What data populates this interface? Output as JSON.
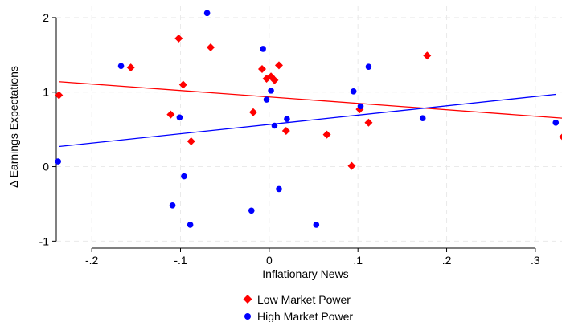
{
  "chart_data": {
    "type": "scatter",
    "title": "",
    "xlabel": "Inflationary News",
    "ylabel": "Δ Earnings Expectations",
    "xlim": [
      -0.24,
      0.33
    ],
    "ylim": [
      -1.05,
      2.15
    ],
    "x_ticks": [
      -0.2,
      -0.1,
      0,
      0.1,
      0.2,
      0.3
    ],
    "x_tick_labels": [
      "-.2",
      "-.1",
      "0",
      ".1",
      ".2",
      ".3"
    ],
    "y_ticks": [
      -1,
      0,
      1,
      2
    ],
    "y_tick_labels": [
      "-1",
      "0",
      "1",
      "2"
    ],
    "grid": true,
    "legend_position": "bottom-center",
    "series": [
      {
        "name": "Low Market Power",
        "color": "#ff0000",
        "marker": "diamond",
        "points": [
          {
            "x": -0.237,
            "y": 0.96
          },
          {
            "x": -0.156,
            "y": 1.33
          },
          {
            "x": -0.102,
            "y": 1.72
          },
          {
            "x": -0.097,
            "y": 1.1
          },
          {
            "x": -0.111,
            "y": 0.7
          },
          {
            "x": -0.088,
            "y": 0.34
          },
          {
            "x": -0.066,
            "y": 1.6
          },
          {
            "x": -0.018,
            "y": 0.73
          },
          {
            "x": -0.008,
            "y": 1.31
          },
          {
            "x": -0.003,
            "y": 1.18
          },
          {
            "x": 0.002,
            "y": 1.21
          },
          {
            "x": 0.006,
            "y": 1.16
          },
          {
            "x": 0.011,
            "y": 1.36
          },
          {
            "x": 0.019,
            "y": 0.48
          },
          {
            "x": 0.065,
            "y": 0.43
          },
          {
            "x": 0.093,
            "y": 0.01
          },
          {
            "x": 0.102,
            "y": 0.77
          },
          {
            "x": 0.112,
            "y": 0.59
          },
          {
            "x": 0.178,
            "y": 1.49
          },
          {
            "x": 0.331,
            "y": 0.4
          }
        ],
        "fit_line": {
          "x": [
            -0.237,
            0.331
          ],
          "y": [
            1.14,
            0.65
          ]
        }
      },
      {
        "name": "High Market Power",
        "color": "#0000ff",
        "marker": "circle",
        "points": [
          {
            "x": -0.238,
            "y": 0.07
          },
          {
            "x": -0.167,
            "y": 1.35
          },
          {
            "x": -0.109,
            "y": -0.52
          },
          {
            "x": -0.101,
            "y": 0.66
          },
          {
            "x": -0.096,
            "y": -0.13
          },
          {
            "x": -0.089,
            "y": -0.78
          },
          {
            "x": -0.07,
            "y": 2.06
          },
          {
            "x": -0.02,
            "y": -0.59
          },
          {
            "x": -0.007,
            "y": 1.58
          },
          {
            "x": -0.003,
            "y": 0.9
          },
          {
            "x": 0.002,
            "y": 1.02
          },
          {
            "x": 0.006,
            "y": 0.55
          },
          {
            "x": 0.011,
            "y": -0.3
          },
          {
            "x": 0.02,
            "y": 0.64
          },
          {
            "x": 0.053,
            "y": -0.78
          },
          {
            "x": 0.095,
            "y": 1.01
          },
          {
            "x": 0.103,
            "y": 0.81
          },
          {
            "x": 0.112,
            "y": 1.34
          },
          {
            "x": 0.173,
            "y": 0.65
          },
          {
            "x": 0.323,
            "y": 0.59
          }
        ],
        "fit_line": {
          "x": [
            -0.237,
            0.323
          ],
          "y": [
            0.27,
            0.97
          ]
        }
      }
    ]
  },
  "legend": {
    "items": [
      {
        "label": "Low Market Power",
        "color": "#ff0000",
        "marker": "diamond"
      },
      {
        "label": "High Market Power",
        "color": "#0000ff",
        "marker": "circle"
      }
    ]
  }
}
